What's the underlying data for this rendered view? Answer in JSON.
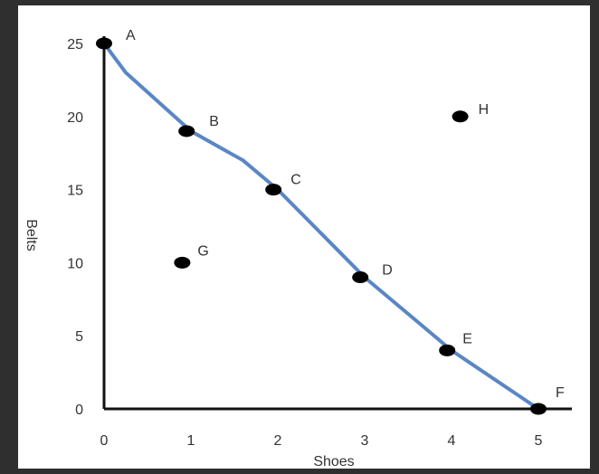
{
  "chart_data": {
    "type": "line",
    "title": "",
    "xlabel": "Shoes",
    "ylabel": "Belts",
    "xlim": [
      0,
      5
    ],
    "ylim": [
      0,
      25
    ],
    "xticks": [
      "0",
      "1",
      "2",
      "3",
      "4",
      "5"
    ],
    "yticks": [
      "0",
      "5",
      "10",
      "15",
      "20",
      "25"
    ],
    "grid": false,
    "curve": {
      "color": "#5b86c4",
      "points": [
        {
          "x": 0,
          "y": 25
        },
        {
          "x": 0.25,
          "y": 23
        },
        {
          "x": 1,
          "y": 19
        },
        {
          "x": 1.6,
          "y": 17
        },
        {
          "x": 2,
          "y": 15
        },
        {
          "x": 3,
          "y": 9
        },
        {
          "x": 3.6,
          "y": 6
        },
        {
          "x": 4,
          "y": 4
        },
        {
          "x": 5,
          "y": 0
        }
      ]
    },
    "points": [
      {
        "label": "A",
        "x": 0,
        "y": 25
      },
      {
        "label": "B",
        "x": 0.95,
        "y": 19
      },
      {
        "label": "C",
        "x": 1.95,
        "y": 15
      },
      {
        "label": "D",
        "x": 2.95,
        "y": 9
      },
      {
        "label": "E",
        "x": 3.95,
        "y": 4
      },
      {
        "label": "F",
        "x": 5,
        "y": 0
      },
      {
        "label": "G",
        "x": 0.9,
        "y": 10
      },
      {
        "label": "H",
        "x": 4.1,
        "y": 20
      }
    ]
  }
}
